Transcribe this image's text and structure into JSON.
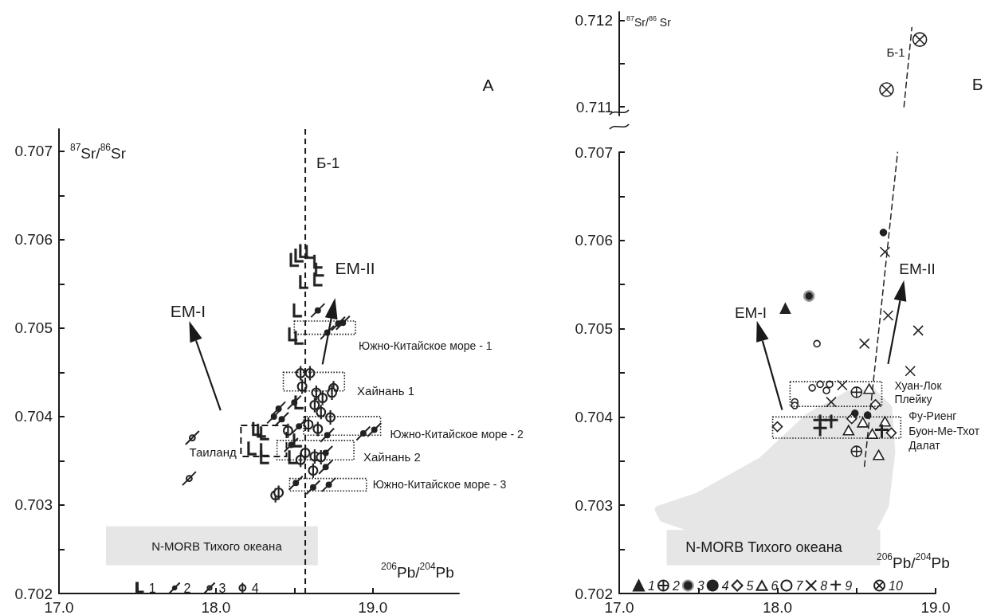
{
  "chart_data": [
    {
      "type": "scatter",
      "xlabel": "$^{206}$Pb/$^{204}$Pb",
      "ylabel": "$^{87}$Sr/$^{86}$Sr",
      "xlim": [
        17,
        19.55
      ],
      "xticks": [
        {
          "value": 17,
          "label": "17.0"
        },
        {
          "value": 17.5,
          "label": null
        },
        {
          "value": 18,
          "label": "18.0"
        },
        {
          "value": 18.5,
          "label": null
        },
        {
          "value": 19,
          "label": "19.0"
        }
      ],
      "ylim": [
        0.702,
        0.70725
      ],
      "yticks": [
        0.702,
        {
          "value": 0.7025,
          "label": null
        },
        0.703,
        {
          "value": 0.7035,
          "label": null
        },
        0.704,
        {
          "value": 0.7045,
          "label": null
        },
        0.705,
        {
          "value": 0.7055,
          "label": null
        },
        0.706,
        {
          "value": 0.7065,
          "label": null
        },
        0.707
      ],
      "grid": false,
      "legend": "bottom",
      "ref_lines": [
        {
          "axis": "x",
          "value": 18.57,
          "label": "Б-1",
          "line_style": "dashed"
        }
      ],
      "annotations": [
        "А",
        "EM-I",
        "EM-II",
        "Таиланд",
        "Южно-Китайское море - 1",
        "Хайнань 1",
        "Южно-Китайское море - 2",
        "Хайнань 2",
        "Южно-Китайское море - 3",
        "N-MORB Тихого океана"
      ],
      "series": [
        {
          "name": "1",
          "color": "#222222",
          "x": [
            18.5,
            18.53,
            18.56,
            18.6,
            18.65,
            18.66,
            18.56,
            18.65,
            18.52,
            18.49,
            18.53,
            18.26,
            18.29,
            18.31,
            18.23,
            18.31,
            18.31,
            18.49,
            18.53,
            18.52
          ],
          "values": [
            0.70577,
            0.70582,
            0.70587,
            0.70586,
            0.70575,
            0.70566,
            0.70552,
            0.70555,
            0.7052,
            0.70493,
            0.70489,
            0.70386,
            0.70384,
            0.70381,
            0.70364,
            0.70362,
            0.70354,
            0.70354,
            0.70416,
            0.70373
          ]
        },
        {
          "name": "2",
          "color": "#222222",
          "x": [
            18.65,
            18.71,
            18.78,
            18.81,
            18.4,
            18.37,
            18.42,
            18.5,
            18.53,
            18.94,
            19.01,
            18.71,
            18.7,
            18.7,
            18.51,
            18.62,
            18.72,
            18.48
          ],
          "values": [
            0.7052,
            0.70495,
            0.70505,
            0.70506,
            0.70409,
            0.704,
            0.70397,
            0.70416,
            0.70389,
            0.70381,
            0.70385,
            0.70379,
            0.70359,
            0.70343,
            0.70325,
            0.7032,
            0.70323,
            0.70368
          ]
        },
        {
          "name": "3",
          "color": "#222222",
          "x": [
            17.85,
            17.83
          ],
          "values": [
            0.70376,
            0.7033
          ]
        },
        {
          "name": "4",
          "color": "#222222",
          "x": [
            18.54,
            18.6,
            18.55,
            18.75,
            18.74,
            18.64,
            18.68,
            18.63,
            18.67,
            18.73,
            18.59,
            18.46,
            18.65,
            18.57,
            18.54,
            18.63,
            18.67,
            18.62,
            18.38,
            18.4
          ],
          "values": [
            0.70449,
            0.70449,
            0.70434,
            0.70432,
            0.70427,
            0.70427,
            0.70421,
            0.70413,
            0.70405,
            0.70399,
            0.70391,
            0.70384,
            0.70386,
            0.70359,
            0.70351,
            0.70355,
            0.70354,
            0.70339,
            0.70311,
            0.70314
          ]
        }
      ]
    },
    {
      "type": "scatter",
      "ylabel": "$^{87}$Sr/$^{86}$ Sr",
      "xlim": [
        17,
        19
      ],
      "ylim": [
        0.7109,
        0.7121
      ],
      "yticks": [
        0.711,
        {
          "value": 0.7115,
          "label": null
        },
        0.712
      ],
      "tick_labels": "y",
      "grid": false,
      "legend": "bottom",
      "annotations": [
        "Б",
        "Б-1"
      ],
      "series": [
        {
          "name": "10",
          "color": "#222222",
          "x": [
            18.9,
            18.69
          ],
          "values": [
            0.71178,
            0.7112
          ]
        },
        {
          "type": "line",
          "color": "#222222",
          "line_style": "dashed",
          "x": [
            18.8,
            18.85
          ],
          "values": [
            0.711,
            0.71192
          ]
        }
      ]
    },
    {
      "type": "scatter",
      "xlabel": "$^{206}$Pb/$^{204}$Pb",
      "xlim": [
        17,
        19
      ],
      "xticks": [
        {
          "value": 17,
          "label": "17.0"
        },
        {
          "value": 17.5,
          "label": null
        },
        {
          "value": 18,
          "label": "18.0"
        },
        {
          "value": 18.5,
          "label": null
        },
        {
          "value": 19,
          "label": "19.0"
        }
      ],
      "ylim": [
        0.702,
        0.707
      ],
      "yticks": [
        0.702,
        {
          "value": 0.7025,
          "label": null
        },
        0.703,
        {
          "value": 0.7035,
          "label": null
        },
        0.704,
        {
          "value": 0.7045,
          "label": null
        },
        0.705,
        {
          "value": 0.7055,
          "label": null
        },
        0.706,
        {
          "value": 0.7065,
          "label": null
        },
        0.707
      ],
      "grid": false,
      "legend": "bottom",
      "annotations": [
        "EM-I",
        "EM-II",
        "Хуан-Лок",
        "Плейку",
        "Фу-Риенг",
        "Буон-Ме-Тхот",
        "Далат",
        "N-MORB Тихого океана"
      ],
      "series": [
        {
          "name": "1",
          "color": "#222222",
          "x": [
            18.05
          ],
          "values": [
            0.70523
          ]
        },
        {
          "name": "2",
          "color": "#222222",
          "x": [
            18.5,
            18.5
          ],
          "values": [
            0.70428,
            0.70361
          ]
        },
        {
          "name": "3",
          "color": "#222222",
          "x": [
            18.2
          ],
          "values": [
            0.70537
          ]
        },
        {
          "name": "4",
          "color": "#222222",
          "x": [
            18.67,
            18.49,
            18.57
          ],
          "values": [
            0.70609,
            0.70404,
            0.70402
          ]
        },
        {
          "name": "5",
          "color": "#222222",
          "x": [
            18.0,
            18.47,
            18.62,
            18.72
          ],
          "values": [
            0.70389,
            0.70398,
            0.70414,
            0.70382
          ]
        },
        {
          "name": "6",
          "color": "#222222",
          "x": [
            18.58,
            18.45,
            18.54,
            18.6,
            18.68,
            18.64
          ],
          "values": [
            0.70432,
            0.70385,
            0.70394,
            0.70381,
            0.70395,
            0.70357
          ]
        },
        {
          "name": "7",
          "color": "#222222",
          "x": [
            18.25,
            18.22,
            18.27,
            18.33,
            18.31,
            18.11,
            18.11
          ],
          "values": [
            0.70483,
            0.70433,
            0.70437,
            0.70437,
            0.7043,
            0.70417,
            0.70413
          ]
        },
        {
          "name": "8",
          "color": "#222222",
          "x": [
            18.68,
            18.7,
            18.55,
            18.89,
            18.84,
            18.41,
            18.34
          ],
          "values": [
            0.70587,
            0.70515,
            0.70483,
            0.70498,
            0.70452,
            0.70436,
            0.70417
          ]
        },
        {
          "name": "9",
          "color": "#222222",
          "x": [
            18.27,
            18.27,
            18.34,
            18.66
          ],
          "values": [
            0.70395,
            0.70386,
            0.70395,
            0.70384
          ]
        },
        {
          "type": "line",
          "color": "#222222",
          "line_style": "dashed",
          "x": [
            18.55,
            18.76
          ],
          "values": [
            0.70344,
            0.707
          ]
        }
      ]
    }
  ]
}
